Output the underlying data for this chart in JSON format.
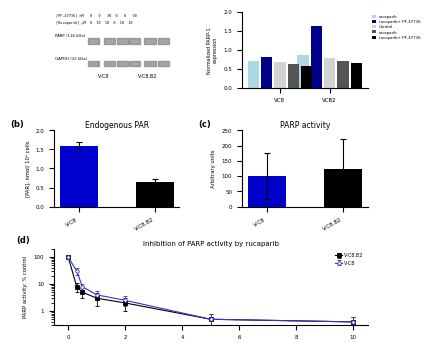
{
  "panel_b": {
    "title": "Endogenous PAR",
    "categories": [
      "V-C8",
      "V-C8.B2"
    ],
    "values": [
      1.6,
      0.65
    ],
    "errors": [
      0.08,
      0.07
    ],
    "colors": [
      "#0000cc",
      "#000000"
    ],
    "ylabel": "[PAR], nmol/ 10⁶ cells",
    "ylim": [
      0,
      2.0
    ],
    "yticks": [
      0.0,
      0.5,
      1.0,
      1.5,
      2.0
    ]
  },
  "panel_c": {
    "title": "PARP activity",
    "categories": [
      "V-C8",
      "V-C8.B2"
    ],
    "values": [
      100,
      122
    ],
    "errors": [
      75,
      100
    ],
    "colors": [
      "#0000cc",
      "#000000"
    ],
    "ylabel": "Arbitrary units",
    "ylim": [
      0,
      250
    ],
    "yticks": [
      0,
      50,
      100,
      150,
      200,
      250
    ]
  },
  "panel_d": {
    "title": "Inhibition of PARP activity by rucaparib",
    "xlabel": "",
    "ylabel": "PARP activity: % control",
    "yscale": "log",
    "yticks": [
      1,
      10,
      100
    ],
    "ylim": [
      0.3,
      200
    ],
    "series": {
      "VCB2": {
        "label": "V-C8.B2",
        "color": "#000000",
        "marker": "s",
        "x": [
          0,
          0.3,
          0.5,
          1,
          2,
          5,
          10
        ],
        "y": [
          100,
          8,
          5,
          3,
          2,
          0.5,
          0.4
        ],
        "yerr": [
          5,
          3,
          2,
          1.5,
          1,
          0.3,
          0.2
        ]
      },
      "VC8": {
        "label": "V-C8",
        "color": "#3333cc",
        "marker": "o",
        "x": [
          0,
          0.3,
          0.5,
          1,
          2,
          5,
          10
        ],
        "y": [
          100,
          30,
          8,
          4,
          2.5,
          0.5,
          0.4
        ],
        "yerr": [
          5,
          8,
          2,
          1.5,
          1,
          0.3,
          0.2
        ]
      }
    }
  },
  "panel_a_bars": {
    "title": "",
    "groups": [
      "VC8",
      "VC8B2"
    ],
    "group_labels": [
      "VC8",
      "VCB2"
    ],
    "bar_data": [
      {
        "label": "rucaparib",
        "color": "#add8e6",
        "values": [
          0.72,
          0.88
        ]
      },
      {
        "label": "rucaparib+ PF-47736",
        "color": "#00008b",
        "values": [
          0.82,
          1.62
        ]
      },
      {
        "label": "Control",
        "color": "#d3d3d3",
        "values": [
          0.68,
          0.78
        ]
      },
      {
        "label": "rucaparib",
        "color": "#555555",
        "values": [
          0.62,
          0.72
        ]
      },
      {
        "label": "rucaparib+ PF-47736",
        "color": "#000000",
        "values": [
          0.58,
          0.65
        ]
      }
    ],
    "ylabel": "Normalized PARP-1 expre...",
    "ylim": [
      0,
      2.0
    ]
  },
  "background_color": "#ffffff"
}
